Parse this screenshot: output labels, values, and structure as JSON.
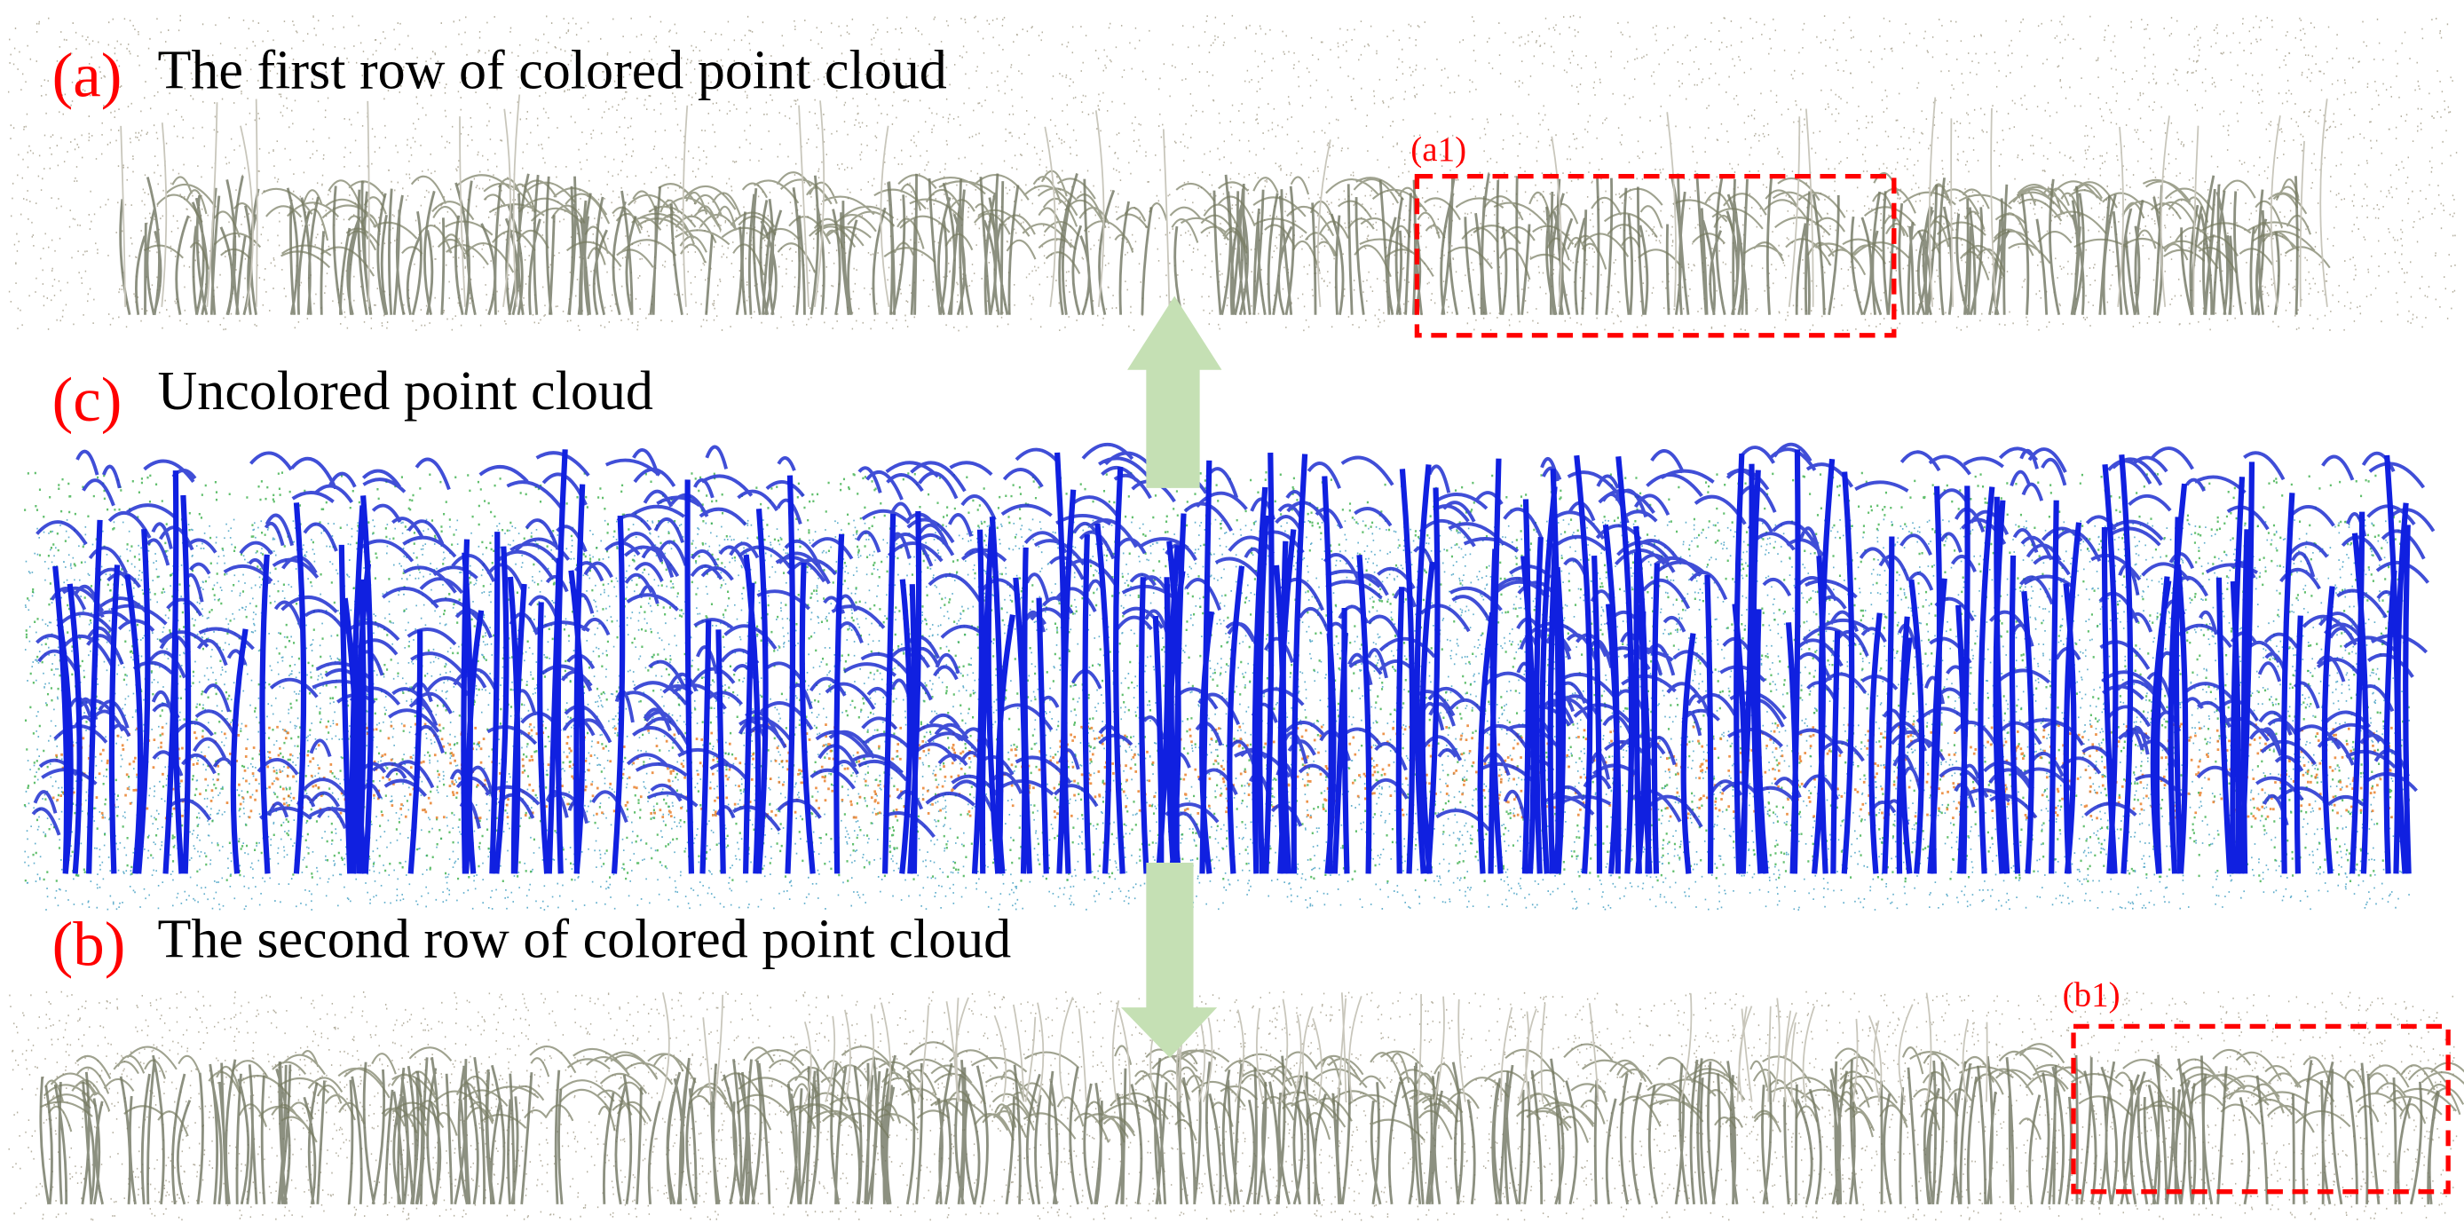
{
  "panels": {
    "a": {
      "label": "(a)",
      "title": "The first row of colored point cloud",
      "inset": "(a1)"
    },
    "c": {
      "label": "(c)",
      "title": "Uncolored point cloud"
    },
    "b": {
      "label": "(b)",
      "title": "The second row of colored point cloud",
      "inset": "(b1)"
    }
  }
}
